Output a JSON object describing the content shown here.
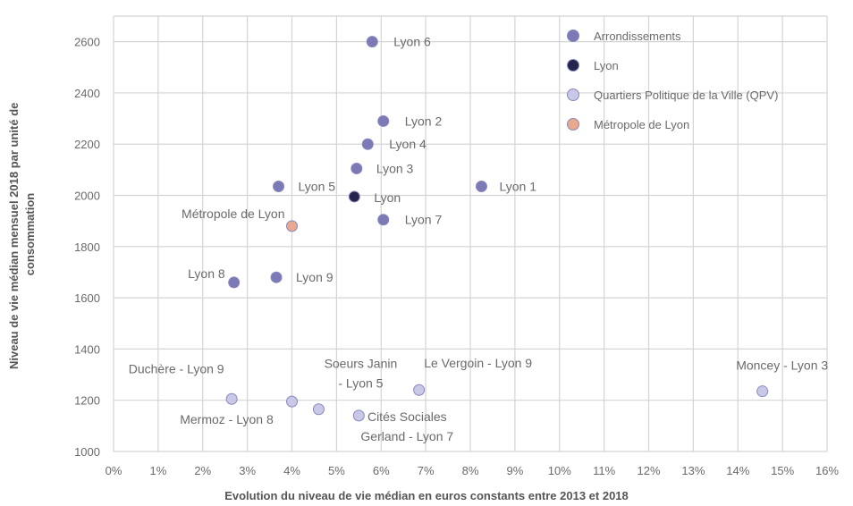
{
  "chart_data": {
    "type": "scatter",
    "title": "",
    "xlabel": "Evolution du niveau de vie médian en euros constants entre 2013 et 2018",
    "ylabel_lines": [
      "Niveau de vie médian mensuel 2018 par unité de",
      "consommation"
    ],
    "xlim": [
      0,
      16
    ],
    "ylim": [
      1000,
      2700
    ],
    "x_ticks": [
      0,
      1,
      2,
      3,
      4,
      5,
      6,
      7,
      8,
      9,
      10,
      11,
      12,
      13,
      14,
      15,
      16
    ],
    "x_tick_labels": [
      "0%",
      "1%",
      "2%",
      "3%",
      "4%",
      "5%",
      "6%",
      "7%",
      "8%",
      "9%",
      "10%",
      "11%",
      "12%",
      "13%",
      "14%",
      "15%",
      "16%"
    ],
    "y_ticks": [
      1000,
      1200,
      1400,
      1600,
      1800,
      2000,
      2200,
      2400,
      2600
    ],
    "y_tick_labels": [
      "1000",
      "1200",
      "1400",
      "1600",
      "1800",
      "2000",
      "2200",
      "2400",
      "2600"
    ],
    "grid": true,
    "legend_position": "top-right",
    "series": [
      {
        "name": "Arrondissements",
        "color": "#7b79b6",
        "points": [
          {
            "label": "Lyon 6",
            "x": 5.8,
            "y": 2600
          },
          {
            "label": "Lyon 2",
            "x": 6.05,
            "y": 2290
          },
          {
            "label": "Lyon 4",
            "x": 5.7,
            "y": 2200
          },
          {
            "label": "Lyon 3",
            "x": 5.45,
            "y": 2105
          },
          {
            "label": "Lyon 5",
            "x": 3.7,
            "y": 2035
          },
          {
            "label": "Lyon 1",
            "x": 8.25,
            "y": 2035
          },
          {
            "label": "Lyon 7",
            "x": 6.05,
            "y": 1905
          },
          {
            "label": "Lyon 8",
            "x": 2.7,
            "y": 1660
          },
          {
            "label": "Lyon 9",
            "x": 3.65,
            "y": 1680
          }
        ]
      },
      {
        "name": "Lyon",
        "color": "#26234f",
        "points": [
          {
            "label": "Lyon",
            "x": 5.4,
            "y": 1995
          }
        ]
      },
      {
        "name": "Quartiers Politique de la Ville (QPV)",
        "color": "#c9c8e6",
        "points": [
          {
            "label": "Duchère - Lyon 9",
            "x": 2.65,
            "y": 1205
          },
          {
            "label": "Mermoz - Lyon 8",
            "x": 4.0,
            "y": 1195
          },
          {
            "label": "Soeurs Janin - Lyon 5",
            "x": 4.6,
            "y": 1165
          },
          {
            "label": "Cités Sociales Gerland - Lyon 7",
            "x": 5.5,
            "y": 1140
          },
          {
            "label": "Le Vergoin - Lyon 9",
            "x": 6.85,
            "y": 1240
          },
          {
            "label": "Moncey - Lyon 3",
            "x": 14.55,
            "y": 1235
          }
        ]
      },
      {
        "name": "Métropole de Lyon",
        "color": "#e8a98f",
        "points": [
          {
            "label": "Métropole de Lyon",
            "x": 4.0,
            "y": 1880
          }
        ]
      }
    ]
  }
}
